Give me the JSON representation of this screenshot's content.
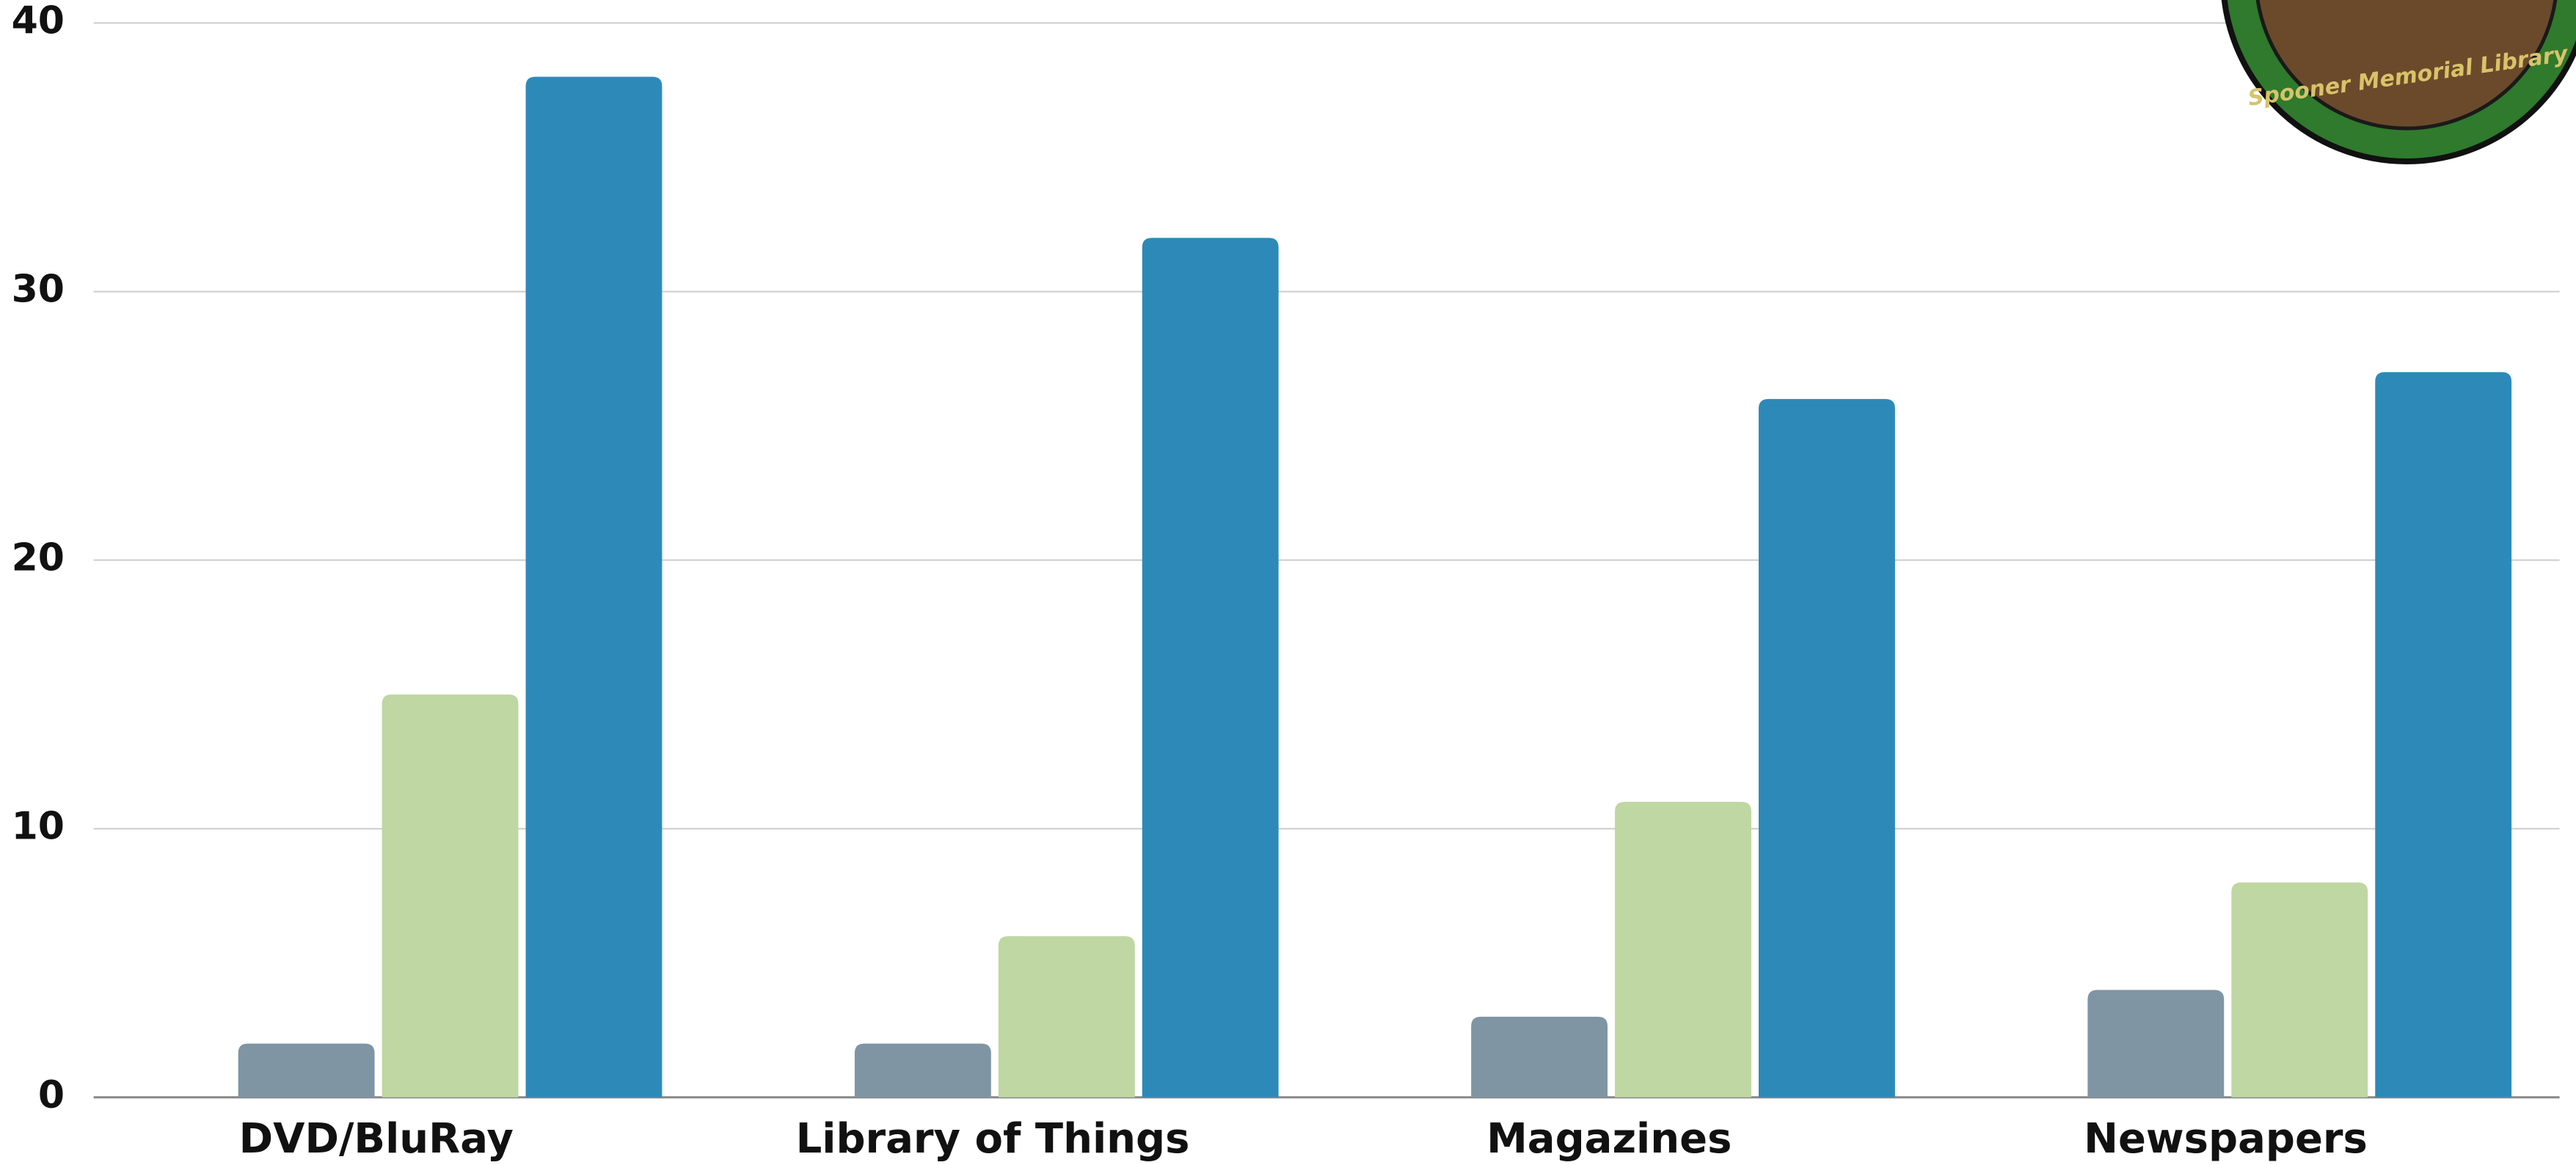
{
  "chart_data": {
    "type": "bar",
    "categories": [
      "DVD/BluRay",
      "Library of Things",
      "Magazines",
      "Newspapers"
    ],
    "series": [
      {
        "color": "#7f95a4",
        "values": [
          2,
          2,
          3,
          4
        ]
      },
      {
        "color": "#bfd7a2",
        "values": [
          15,
          6,
          11,
          8
        ]
      },
      {
        "color": "#2d8ab8",
        "values": [
          38,
          32,
          26,
          27
        ]
      }
    ],
    "ylim": [
      0,
      40
    ],
    "yticks": [
      0,
      10,
      20,
      30,
      40
    ],
    "grid": true
  },
  "logo_text": "Spooner Memorial Library"
}
